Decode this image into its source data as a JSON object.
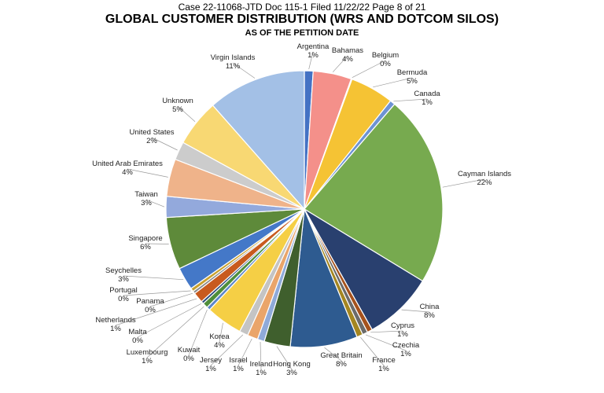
{
  "header": {
    "case_line": "Case 22-11068-JTD      Doc 115-1      Filed 11/22/22      Page 8 of 21"
  },
  "chart_data": {
    "type": "pie",
    "title": "GLOBAL CUSTOMER DISTRIBUTION (WRS AND DOTCOM SILOS)",
    "subtitle": "AS OF THE PETITION DATE",
    "slices": [
      {
        "label": "Argentina",
        "pct_label": "1%",
        "value": 1.0,
        "color": "#4472c4"
      },
      {
        "label": "Bahamas",
        "pct_label": "4%",
        "value": 4.4,
        "color": "#f4908a"
      },
      {
        "label": "Belgium",
        "pct_label": "0%",
        "value": 0.1,
        "color": "#bfbfbf"
      },
      {
        "label": "Bermuda",
        "pct_label": "5%",
        "value": 5.0,
        "color": "#f5c334"
      },
      {
        "label": "Canada",
        "pct_label": "1%",
        "value": 0.6,
        "color": "#6d93d4"
      },
      {
        "label": "Cayman Islands",
        "pct_label": "22%",
        "value": 22.0,
        "color": "#77aa4f"
      },
      {
        "label": "China",
        "pct_label": "8%",
        "value": 8.0,
        "color": "#29406f"
      },
      {
        "label": "Cyprus",
        "pct_label": "1%",
        "value": 0.6,
        "color": "#a5521d"
      },
      {
        "label": "Czechia",
        "pct_label": "1%",
        "value": 0.6,
        "color": "#6b6b6b"
      },
      {
        "label": "France",
        "pct_label": "1%",
        "value": 0.7,
        "color": "#a48621"
      },
      {
        "label": "Great Britain",
        "pct_label": "8%",
        "value": 7.7,
        "color": "#2e5b90"
      },
      {
        "label": "Hong Kong",
        "pct_label": "3%",
        "value": 3.0,
        "color": "#3f5f2d"
      },
      {
        "label": "Ireland",
        "pct_label": "1%",
        "value": 0.8,
        "color": "#8faad9"
      },
      {
        "label": "Israel",
        "pct_label": "1%",
        "value": 1.2,
        "color": "#eaa56a"
      },
      {
        "label": "Jersey",
        "pct_label": "1%",
        "value": 1.0,
        "color": "#c4c4c4"
      },
      {
        "label": "Korea",
        "pct_label": "4%",
        "value": 4.2,
        "color": "#f5cf45"
      },
      {
        "label": "Kuwait",
        "pct_label": "0%",
        "value": 0.4,
        "color": "#5b86c9"
      },
      {
        "label": "Luxembourg",
        "pct_label": "1%",
        "value": 0.6,
        "color": "#4f8e3b"
      },
      {
        "label": "Malta",
        "pct_label": "0%",
        "value": 0.3,
        "color": "#2d4b7d"
      },
      {
        "label": "Netherlands",
        "pct_label": "1%",
        "value": 1.2,
        "color": "#c85a1e"
      },
      {
        "label": "Panama",
        "pct_label": "0%",
        "value": 0.3,
        "color": "#8a8a8a"
      },
      {
        "label": "Portugal",
        "pct_label": "0%",
        "value": 0.4,
        "color": "#c9a12e"
      },
      {
        "label": "Seychelles",
        "pct_label": "3%",
        "value": 2.6,
        "color": "#4478c8"
      },
      {
        "label": "Singapore",
        "pct_label": "6%",
        "value": 6.0,
        "color": "#5e8a3a"
      },
      {
        "label": "Taiwan",
        "pct_label": "3%",
        "value": 2.4,
        "color": "#93a9dc"
      },
      {
        "label": "United Arab Emirates",
        "pct_label": "4%",
        "value": 4.3,
        "color": "#efb38a"
      },
      {
        "label": "United States",
        "pct_label": "2%",
        "value": 2.1,
        "color": "#cccccc"
      },
      {
        "label": "Unknown",
        "pct_label": "5%",
        "value": 5.4,
        "color": "#f8d873"
      },
      {
        "label": "Virgin Islands",
        "pct_label": "11%",
        "value": 11.3,
        "color": "#a3c0e6"
      }
    ]
  }
}
